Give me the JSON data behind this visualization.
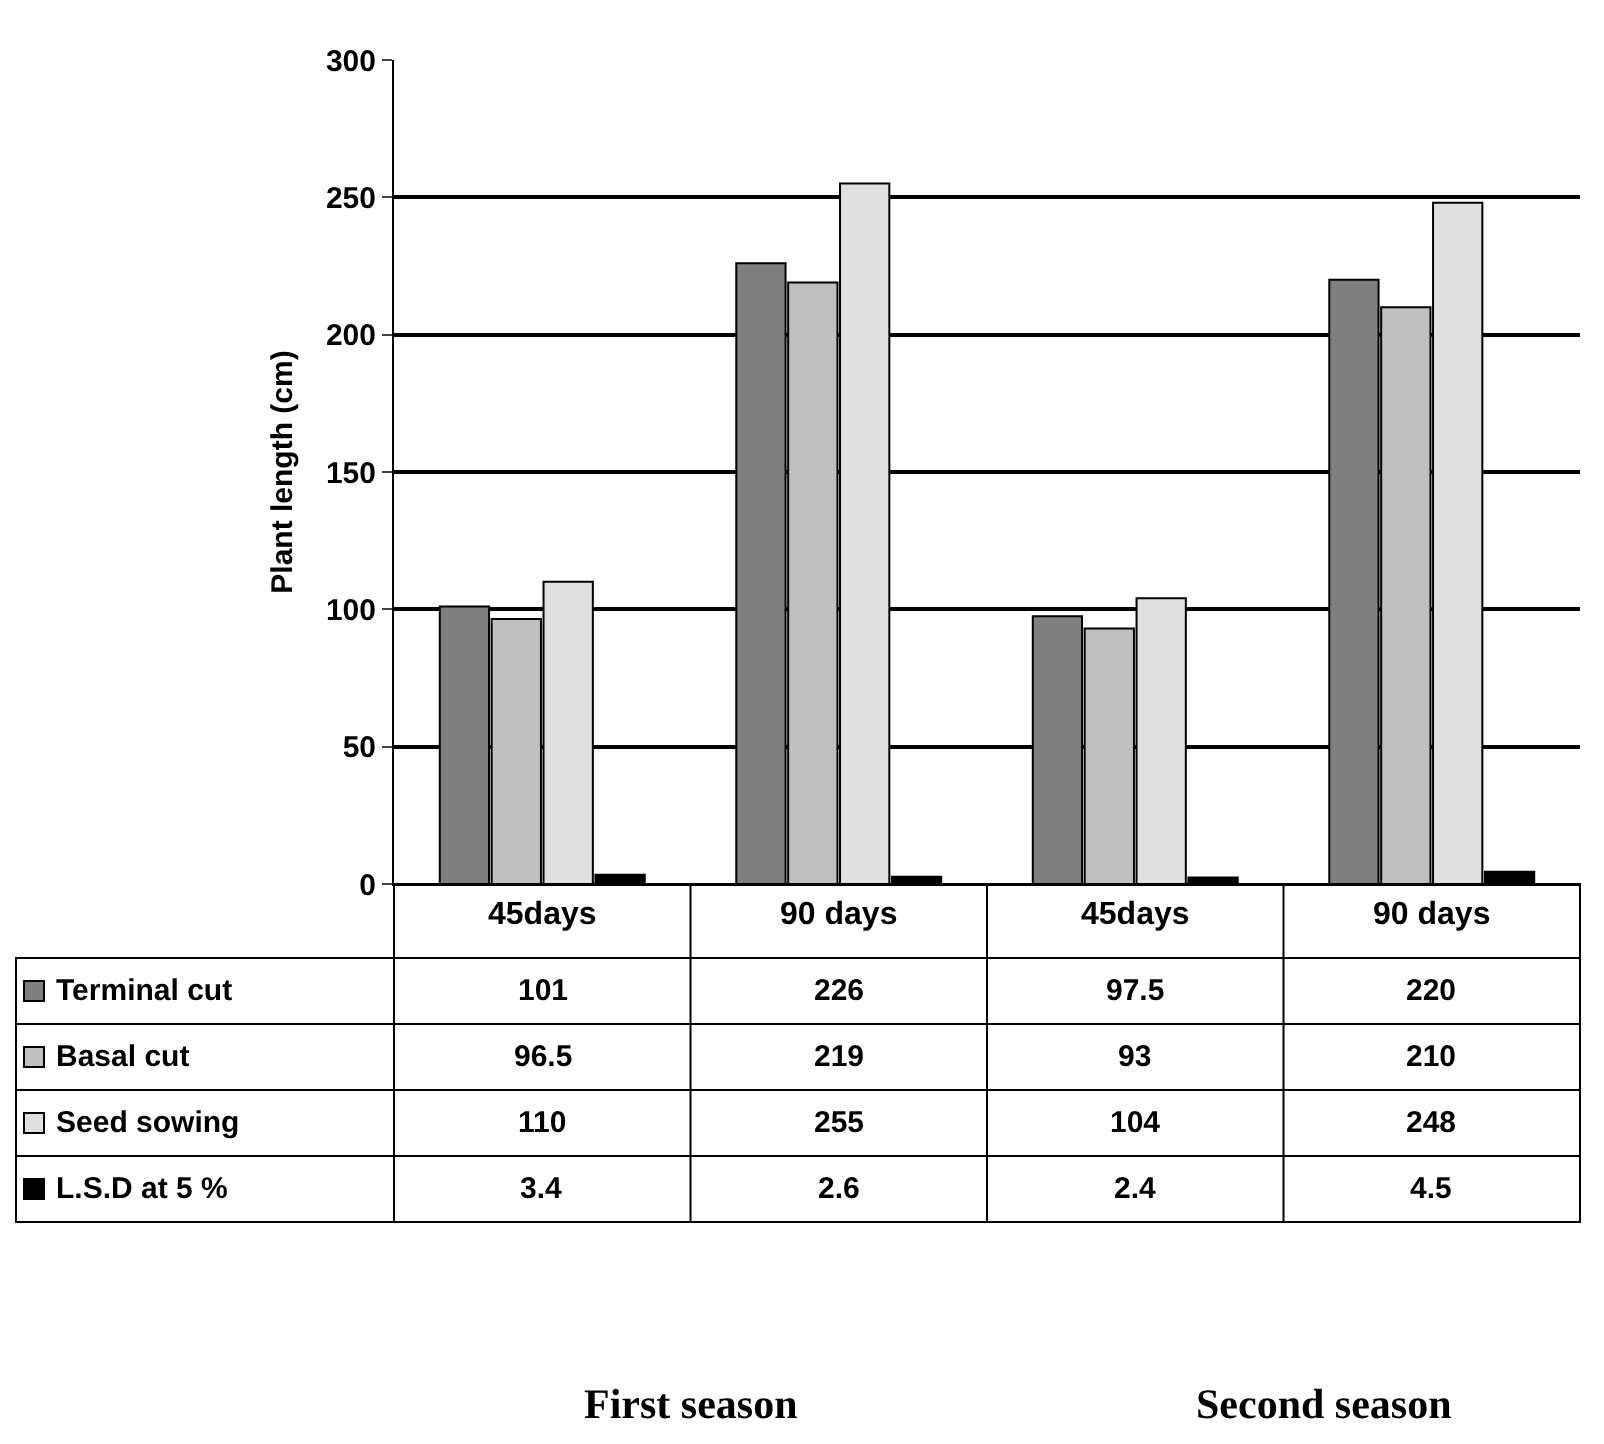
{
  "chart_data": {
    "type": "bar",
    "ylabel": "Plant length (cm)",
    "categories": [
      "45days",
      "90 days",
      "45days",
      "90 days"
    ],
    "series": [
      {
        "name": "Terminal cut",
        "color": "#7f7f7f",
        "values": [
          101,
          226,
          97.5,
          220
        ]
      },
      {
        "name": "Basal cut",
        "color": "#bfbfbf",
        "values": [
          96.5,
          219,
          93,
          210
        ]
      },
      {
        "name": "Seed sowing",
        "color": "#e0e0e0",
        "values": [
          110,
          255,
          104,
          248
        ]
      },
      {
        "name": "L.S.D at 5 %",
        "color": "#000000",
        "values": [
          3.4,
          2.6,
          2.4,
          4.5
        ]
      }
    ],
    "ylim": [
      0,
      300
    ],
    "yticks": [
      0,
      50,
      100,
      150,
      200,
      250,
      300
    ],
    "grid": "y",
    "data_labels": true,
    "legend": "bottom left",
    "annotations": [
      "First season",
      "Second season"
    ]
  }
}
